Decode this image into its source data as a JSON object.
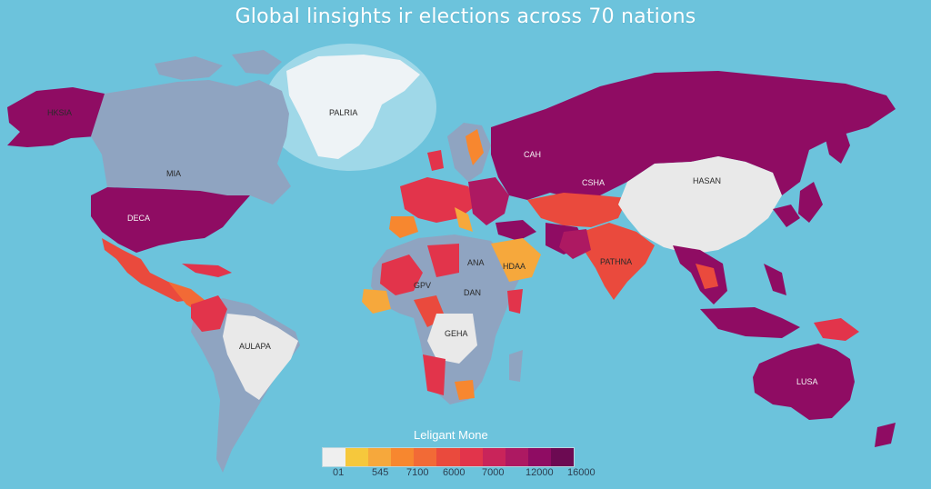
{
  "map": {
    "title": "Global linsights ir elections across 70 nations",
    "ocean_color": "#6cc3dc",
    "labels": {
      "alaska": "HKSIA",
      "greenland": "PALRIA",
      "canada": "MIA",
      "usa": "DECA",
      "russia": "CAH",
      "china": "HASAN",
      "central_asia": "CSHA",
      "india": "PATHNA",
      "arabia": "HDAA",
      "south_america": "AULAPA",
      "central_africa": "GEHA",
      "sahara_w": "GPV",
      "sahara_e": "ANA",
      "sudan": "DAN",
      "australia": "LUSA"
    }
  },
  "legend": {
    "title": "Leligant Mone",
    "colors": [
      "#efefef",
      "#f6c83c",
      "#f6a83c",
      "#f7872f",
      "#f26a36",
      "#ea4a3d",
      "#e2344b",
      "#c9245a",
      "#ad1962",
      "#8f0c63",
      "#6c0a52"
    ],
    "ticks": [
      "01",
      "545",
      "7100",
      "6000",
      "7000",
      "12000",
      "16000"
    ]
  }
}
